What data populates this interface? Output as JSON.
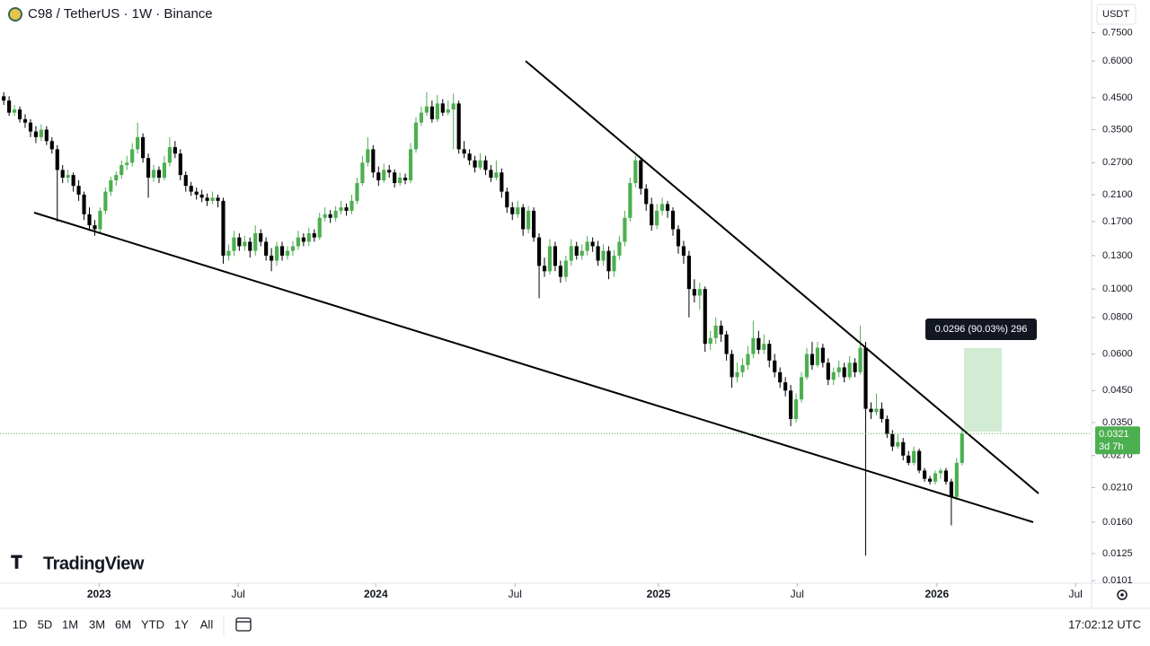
{
  "header": {
    "symbol": "C98 / TetherUS · 1W · Binance",
    "currency": "USDT"
  },
  "logo": "TradingView",
  "toolbar": {
    "ranges": [
      "1D",
      "5D",
      "1M",
      "3M",
      "6M",
      "YTD",
      "1Y",
      "All"
    ],
    "clock": "17:02:12 UTC"
  },
  "chart_data": {
    "type": "candlestick",
    "log": true,
    "up_color": "#4caf50",
    "down_color": "#000000",
    "ylim": [
      0.0099,
      0.97
    ],
    "xlim": [
      -0.7,
      203.2
    ],
    "yticks": [
      {
        "value": 0.75,
        "label": "0.7500"
      },
      {
        "value": 0.6,
        "label": "0.6000"
      },
      {
        "value": 0.45,
        "label": "0.4500"
      },
      {
        "value": 0.35,
        "label": "0.3500"
      },
      {
        "value": 0.27,
        "label": "0.2700"
      },
      {
        "value": 0.21,
        "label": "0.2100"
      },
      {
        "value": 0.17,
        "label": "0.1700"
      },
      {
        "value": 0.13,
        "label": "0.1300"
      },
      {
        "value": 0.1,
        "label": "0.1000"
      },
      {
        "value": 0.08,
        "label": "0.0800"
      },
      {
        "value": 0.06,
        "label": "0.0600"
      },
      {
        "value": 0.045,
        "label": "0.0450"
      },
      {
        "value": 0.035,
        "label": "0.0350"
      },
      {
        "value": 0.027,
        "label": "0.0270"
      },
      {
        "value": 0.021,
        "label": "0.0210"
      },
      {
        "value": 0.016,
        "label": "0.0160"
      },
      {
        "value": 0.0125,
        "label": "0.0125"
      },
      {
        "value": 0.0101,
        "label": "0.0101"
      }
    ],
    "xticks": [
      {
        "value": 17.8,
        "label": "2023"
      },
      {
        "value": 43.8,
        "label": "Jul"
      },
      {
        "value": 69.5,
        "label": "2024"
      },
      {
        "value": 95.5,
        "label": "Jul"
      },
      {
        "value": 122.3,
        "label": "2025"
      },
      {
        "value": 148.2,
        "label": "Jul"
      },
      {
        "value": 174.3,
        "label": "2026"
      },
      {
        "value": 200.2,
        "label": "Jul"
      }
    ],
    "last_price": 0.0321,
    "countdown": "3d 7h",
    "measure_label": "0.0296 (90.03%) 296",
    "ohlc": [
      [
        0.455,
        0.47,
        0.425,
        0.44
      ],
      [
        0.44,
        0.455,
        0.39,
        0.4
      ],
      [
        0.4,
        0.425,
        0.39,
        0.41
      ],
      [
        0.41,
        0.42,
        0.37,
        0.38
      ],
      [
        0.38,
        0.395,
        0.355,
        0.37
      ],
      [
        0.37,
        0.38,
        0.33,
        0.345
      ],
      [
        0.345,
        0.36,
        0.315,
        0.33
      ],
      [
        0.33,
        0.365,
        0.32,
        0.35
      ],
      [
        0.35,
        0.36,
        0.31,
        0.32
      ],
      [
        0.32,
        0.33,
        0.29,
        0.3
      ],
      [
        0.3,
        0.31,
        0.17,
        0.255
      ],
      [
        0.255,
        0.265,
        0.23,
        0.24
      ],
      [
        0.24,
        0.255,
        0.23,
        0.245
      ],
      [
        0.245,
        0.25,
        0.215,
        0.225
      ],
      [
        0.225,
        0.235,
        0.2,
        0.21
      ],
      [
        0.21,
        0.215,
        0.172,
        0.18
      ],
      [
        0.18,
        0.19,
        0.158,
        0.165
      ],
      [
        0.165,
        0.172,
        0.152,
        0.16
      ],
      [
        0.16,
        0.19,
        0.155,
        0.185
      ],
      [
        0.185,
        0.222,
        0.18,
        0.215
      ],
      [
        0.215,
        0.242,
        0.208,
        0.235
      ],
      [
        0.235,
        0.252,
        0.225,
        0.245
      ],
      [
        0.245,
        0.275,
        0.238,
        0.265
      ],
      [
        0.265,
        0.285,
        0.255,
        0.27
      ],
      [
        0.27,
        0.315,
        0.262,
        0.3
      ],
      [
        0.3,
        0.37,
        0.29,
        0.33
      ],
      [
        0.33,
        0.34,
        0.27,
        0.28
      ],
      [
        0.28,
        0.29,
        0.205,
        0.24
      ],
      [
        0.24,
        0.265,
        0.232,
        0.255
      ],
      [
        0.255,
        0.262,
        0.23,
        0.24
      ],
      [
        0.24,
        0.285,
        0.235,
        0.27
      ],
      [
        0.27,
        0.33,
        0.262,
        0.305
      ],
      [
        0.305,
        0.32,
        0.28,
        0.29
      ],
      [
        0.29,
        0.3,
        0.235,
        0.245
      ],
      [
        0.245,
        0.252,
        0.215,
        0.225
      ],
      [
        0.225,
        0.232,
        0.208,
        0.215
      ],
      [
        0.215,
        0.222,
        0.202,
        0.21
      ],
      [
        0.21,
        0.218,
        0.198,
        0.205
      ],
      [
        0.205,
        0.212,
        0.192,
        0.2
      ],
      [
        0.2,
        0.215,
        0.195,
        0.205
      ],
      [
        0.205,
        0.21,
        0.19,
        0.2
      ],
      [
        0.2,
        0.205,
        0.122,
        0.13
      ],
      [
        0.13,
        0.142,
        0.125,
        0.135
      ],
      [
        0.135,
        0.158,
        0.13,
        0.15
      ],
      [
        0.15,
        0.155,
        0.135,
        0.14
      ],
      [
        0.14,
        0.152,
        0.135,
        0.145
      ],
      [
        0.145,
        0.15,
        0.128,
        0.135
      ],
      [
        0.135,
        0.165,
        0.13,
        0.155
      ],
      [
        0.155,
        0.16,
        0.14,
        0.145
      ],
      [
        0.145,
        0.15,
        0.125,
        0.13
      ],
      [
        0.13,
        0.138,
        0.115,
        0.125
      ],
      [
        0.125,
        0.145,
        0.12,
        0.14
      ],
      [
        0.14,
        0.145,
        0.125,
        0.13
      ],
      [
        0.13,
        0.14,
        0.126,
        0.135
      ],
      [
        0.135,
        0.146,
        0.13,
        0.14
      ],
      [
        0.14,
        0.158,
        0.136,
        0.15
      ],
      [
        0.15,
        0.155,
        0.14,
        0.145
      ],
      [
        0.145,
        0.162,
        0.14,
        0.155
      ],
      [
        0.155,
        0.16,
        0.145,
        0.15
      ],
      [
        0.15,
        0.182,
        0.147,
        0.175
      ],
      [
        0.175,
        0.19,
        0.17,
        0.18
      ],
      [
        0.18,
        0.186,
        0.168,
        0.175
      ],
      [
        0.175,
        0.192,
        0.17,
        0.185
      ],
      [
        0.185,
        0.2,
        0.18,
        0.19
      ],
      [
        0.19,
        0.196,
        0.178,
        0.185
      ],
      [
        0.185,
        0.21,
        0.18,
        0.2
      ],
      [
        0.2,
        0.24,
        0.195,
        0.23
      ],
      [
        0.23,
        0.285,
        0.225,
        0.27
      ],
      [
        0.27,
        0.33,
        0.262,
        0.3
      ],
      [
        0.3,
        0.31,
        0.24,
        0.25
      ],
      [
        0.25,
        0.262,
        0.225,
        0.235
      ],
      [
        0.235,
        0.268,
        0.23,
        0.255
      ],
      [
        0.255,
        0.265,
        0.24,
        0.25
      ],
      [
        0.25,
        0.256,
        0.222,
        0.23
      ],
      [
        0.23,
        0.25,
        0.225,
        0.24
      ],
      [
        0.24,
        0.248,
        0.228,
        0.235
      ],
      [
        0.235,
        0.315,
        0.23,
        0.3
      ],
      [
        0.3,
        0.385,
        0.292,
        0.37
      ],
      [
        0.37,
        0.42,
        0.36,
        0.4
      ],
      [
        0.4,
        0.47,
        0.39,
        0.42
      ],
      [
        0.42,
        0.44,
        0.37,
        0.38
      ],
      [
        0.38,
        0.46,
        0.372,
        0.43
      ],
      [
        0.43,
        0.445,
        0.39,
        0.4
      ],
      [
        0.4,
        0.44,
        0.392,
        0.41
      ],
      [
        0.41,
        0.465,
        0.3,
        0.43
      ],
      [
        0.43,
        0.44,
        0.29,
        0.3
      ],
      [
        0.3,
        0.32,
        0.28,
        0.29
      ],
      [
        0.29,
        0.3,
        0.265,
        0.275
      ],
      [
        0.275,
        0.285,
        0.25,
        0.26
      ],
      [
        0.26,
        0.29,
        0.255,
        0.275
      ],
      [
        0.275,
        0.285,
        0.245,
        0.255
      ],
      [
        0.255,
        0.265,
        0.232,
        0.24
      ],
      [
        0.24,
        0.275,
        0.235,
        0.25
      ],
      [
        0.25,
        0.258,
        0.205,
        0.215
      ],
      [
        0.215,
        0.222,
        0.182,
        0.19
      ],
      [
        0.19,
        0.198,
        0.172,
        0.18
      ],
      [
        0.18,
        0.2,
        0.175,
        0.19
      ],
      [
        0.19,
        0.195,
        0.152,
        0.16
      ],
      [
        0.16,
        0.192,
        0.155,
        0.185
      ],
      [
        0.185,
        0.19,
        0.145,
        0.15
      ],
      [
        0.15,
        0.155,
        0.093,
        0.12
      ],
      [
        0.12,
        0.128,
        0.11,
        0.115
      ],
      [
        0.115,
        0.148,
        0.112,
        0.14
      ],
      [
        0.14,
        0.145,
        0.115,
        0.12
      ],
      [
        0.12,
        0.125,
        0.105,
        0.11
      ],
      [
        0.11,
        0.13,
        0.106,
        0.125
      ],
      [
        0.125,
        0.148,
        0.12,
        0.14
      ],
      [
        0.14,
        0.145,
        0.126,
        0.13
      ],
      [
        0.13,
        0.142,
        0.126,
        0.135
      ],
      [
        0.135,
        0.152,
        0.13,
        0.145
      ],
      [
        0.145,
        0.15,
        0.134,
        0.14
      ],
      [
        0.14,
        0.146,
        0.12,
        0.125
      ],
      [
        0.125,
        0.142,
        0.12,
        0.135
      ],
      [
        0.135,
        0.14,
        0.108,
        0.115
      ],
      [
        0.115,
        0.136,
        0.11,
        0.13
      ],
      [
        0.13,
        0.152,
        0.126,
        0.145
      ],
      [
        0.145,
        0.185,
        0.14,
        0.175
      ],
      [
        0.175,
        0.24,
        0.17,
        0.23
      ],
      [
        0.23,
        0.285,
        0.222,
        0.275
      ],
      [
        0.275,
        0.282,
        0.21,
        0.22
      ],
      [
        0.22,
        0.228,
        0.185,
        0.195
      ],
      [
        0.195,
        0.205,
        0.158,
        0.165
      ],
      [
        0.165,
        0.195,
        0.16,
        0.185
      ],
      [
        0.185,
        0.205,
        0.178,
        0.195
      ],
      [
        0.195,
        0.2,
        0.175,
        0.185
      ],
      [
        0.185,
        0.19,
        0.152,
        0.16
      ],
      [
        0.16,
        0.165,
        0.132,
        0.14
      ],
      [
        0.14,
        0.146,
        0.122,
        0.13
      ],
      [
        0.13,
        0.135,
        0.08,
        0.1
      ],
      [
        0.1,
        0.108,
        0.09,
        0.095
      ],
      [
        0.095,
        0.105,
        0.085,
        0.1
      ],
      [
        0.1,
        0.102,
        0.061,
        0.065
      ],
      [
        0.065,
        0.072,
        0.062,
        0.068
      ],
      [
        0.068,
        0.08,
        0.065,
        0.075
      ],
      [
        0.075,
        0.078,
        0.066,
        0.07
      ],
      [
        0.07,
        0.072,
        0.057,
        0.06
      ],
      [
        0.06,
        0.062,
        0.046,
        0.05
      ],
      [
        0.05,
        0.056,
        0.048,
        0.052
      ],
      [
        0.052,
        0.058,
        0.05,
        0.055
      ],
      [
        0.055,
        0.064,
        0.053,
        0.06
      ],
      [
        0.06,
        0.078,
        0.058,
        0.068
      ],
      [
        0.068,
        0.072,
        0.06,
        0.062
      ],
      [
        0.062,
        0.07,
        0.06,
        0.065
      ],
      [
        0.065,
        0.067,
        0.054,
        0.057
      ],
      [
        0.057,
        0.06,
        0.05,
        0.052
      ],
      [
        0.052,
        0.054,
        0.046,
        0.048
      ],
      [
        0.048,
        0.05,
        0.043,
        0.045
      ],
      [
        0.045,
        0.047,
        0.034,
        0.036
      ],
      [
        0.036,
        0.044,
        0.035,
        0.042
      ],
      [
        0.042,
        0.052,
        0.041,
        0.05
      ],
      [
        0.05,
        0.063,
        0.049,
        0.06
      ],
      [
        0.06,
        0.066,
        0.053,
        0.055
      ],
      [
        0.055,
        0.066,
        0.054,
        0.063
      ],
      [
        0.063,
        0.065,
        0.054,
        0.056
      ],
      [
        0.056,
        0.058,
        0.047,
        0.049
      ],
      [
        0.049,
        0.054,
        0.047,
        0.052
      ],
      [
        0.052,
        0.057,
        0.05,
        0.054
      ],
      [
        0.054,
        0.056,
        0.048,
        0.05
      ],
      [
        0.05,
        0.059,
        0.049,
        0.056
      ],
      [
        0.056,
        0.058,
        0.05,
        0.052
      ],
      [
        0.052,
        0.075,
        0.051,
        0.063
      ],
      [
        0.063,
        0.066,
        0.0123,
        0.039
      ],
      [
        0.039,
        0.041,
        0.036,
        0.038
      ],
      [
        0.038,
        0.044,
        0.037,
        0.039
      ],
      [
        0.039,
        0.041,
        0.035,
        0.036
      ],
      [
        0.036,
        0.037,
        0.031,
        0.032
      ],
      [
        0.032,
        0.033,
        0.028,
        0.029
      ],
      [
        0.029,
        0.032,
        0.0285,
        0.03
      ],
      [
        0.03,
        0.031,
        0.026,
        0.027
      ],
      [
        0.027,
        0.028,
        0.025,
        0.0255
      ],
      [
        0.0255,
        0.029,
        0.025,
        0.028
      ],
      [
        0.028,
        0.0285,
        0.0235,
        0.024
      ],
      [
        0.024,
        0.0245,
        0.022,
        0.0225
      ],
      [
        0.0225,
        0.023,
        0.0215,
        0.022
      ],
      [
        0.022,
        0.024,
        0.0215,
        0.0235
      ],
      [
        0.0235,
        0.0245,
        0.0225,
        0.024
      ],
      [
        0.024,
        0.0245,
        0.0215,
        0.022
      ],
      [
        0.022,
        0.0225,
        0.0156,
        0.0195
      ],
      [
        0.0195,
        0.0265,
        0.019,
        0.0255
      ],
      [
        0.0255,
        0.0332,
        0.025,
        0.0321
      ]
    ]
  }
}
